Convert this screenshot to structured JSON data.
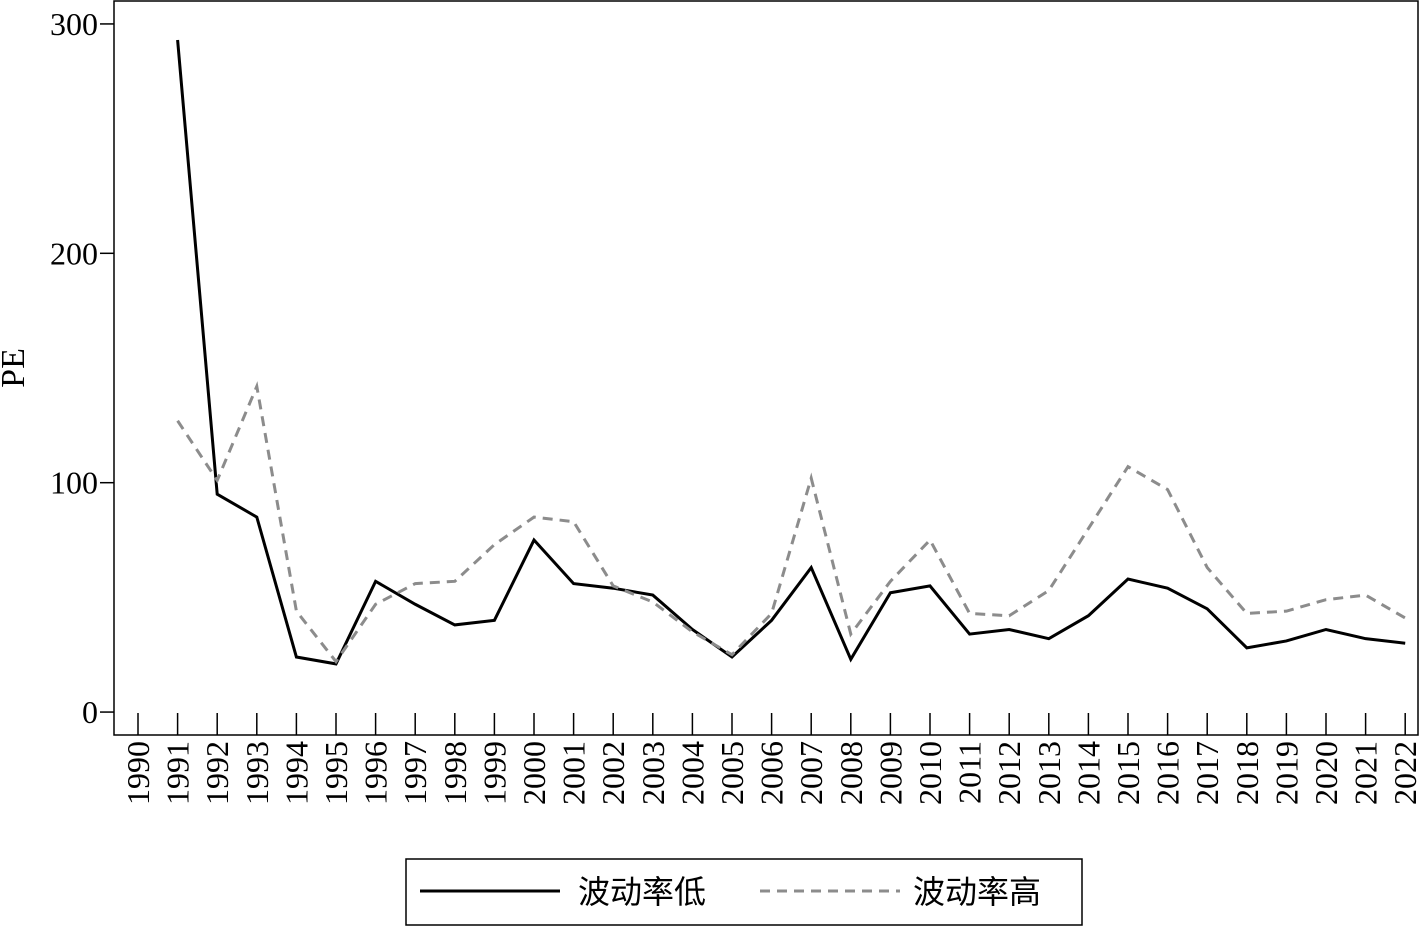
{
  "chart_data": {
    "type": "line",
    "ylabel": "PE",
    "xlabel": "",
    "ylim": [
      -10,
      310
    ],
    "yticks": [
      0,
      100,
      200,
      300
    ],
    "x": [
      "1990",
      "1991",
      "1992",
      "1993",
      "1994",
      "1995",
      "1996",
      "1997",
      "1998",
      "1999",
      "2000",
      "2001",
      "2002",
      "2003",
      "2004",
      "2005",
      "2006",
      "2007",
      "2008",
      "2009",
      "2010",
      "2011",
      "2012",
      "2013",
      "2014",
      "2015",
      "2016",
      "2017",
      "2018",
      "2019",
      "2020",
      "2021",
      "2022"
    ],
    "series": [
      {
        "name": "波动率低",
        "color": "#000000",
        "style": "solid",
        "values": [
          null,
          293,
          95,
          85,
          24,
          21,
          57,
          47,
          38,
          40,
          75,
          56,
          54,
          51,
          36,
          24,
          40,
          63,
          23,
          52,
          55,
          34,
          36,
          32,
          42,
          58,
          54,
          45,
          28,
          31,
          36,
          32,
          30
        ]
      },
      {
        "name": "波动率高",
        "color": "#8c8c8c",
        "style": "dashed",
        "values": [
          null,
          127,
          101,
          142,
          44,
          22,
          47,
          56,
          57,
          73,
          85,
          83,
          55,
          48,
          35,
          25,
          43,
          102,
          34,
          57,
          75,
          43,
          42,
          53,
          80,
          107,
          97,
          63,
          43,
          44,
          49,
          51,
          41
        ]
      }
    ],
    "legend_position": "bottom-center",
    "grid": false
  }
}
